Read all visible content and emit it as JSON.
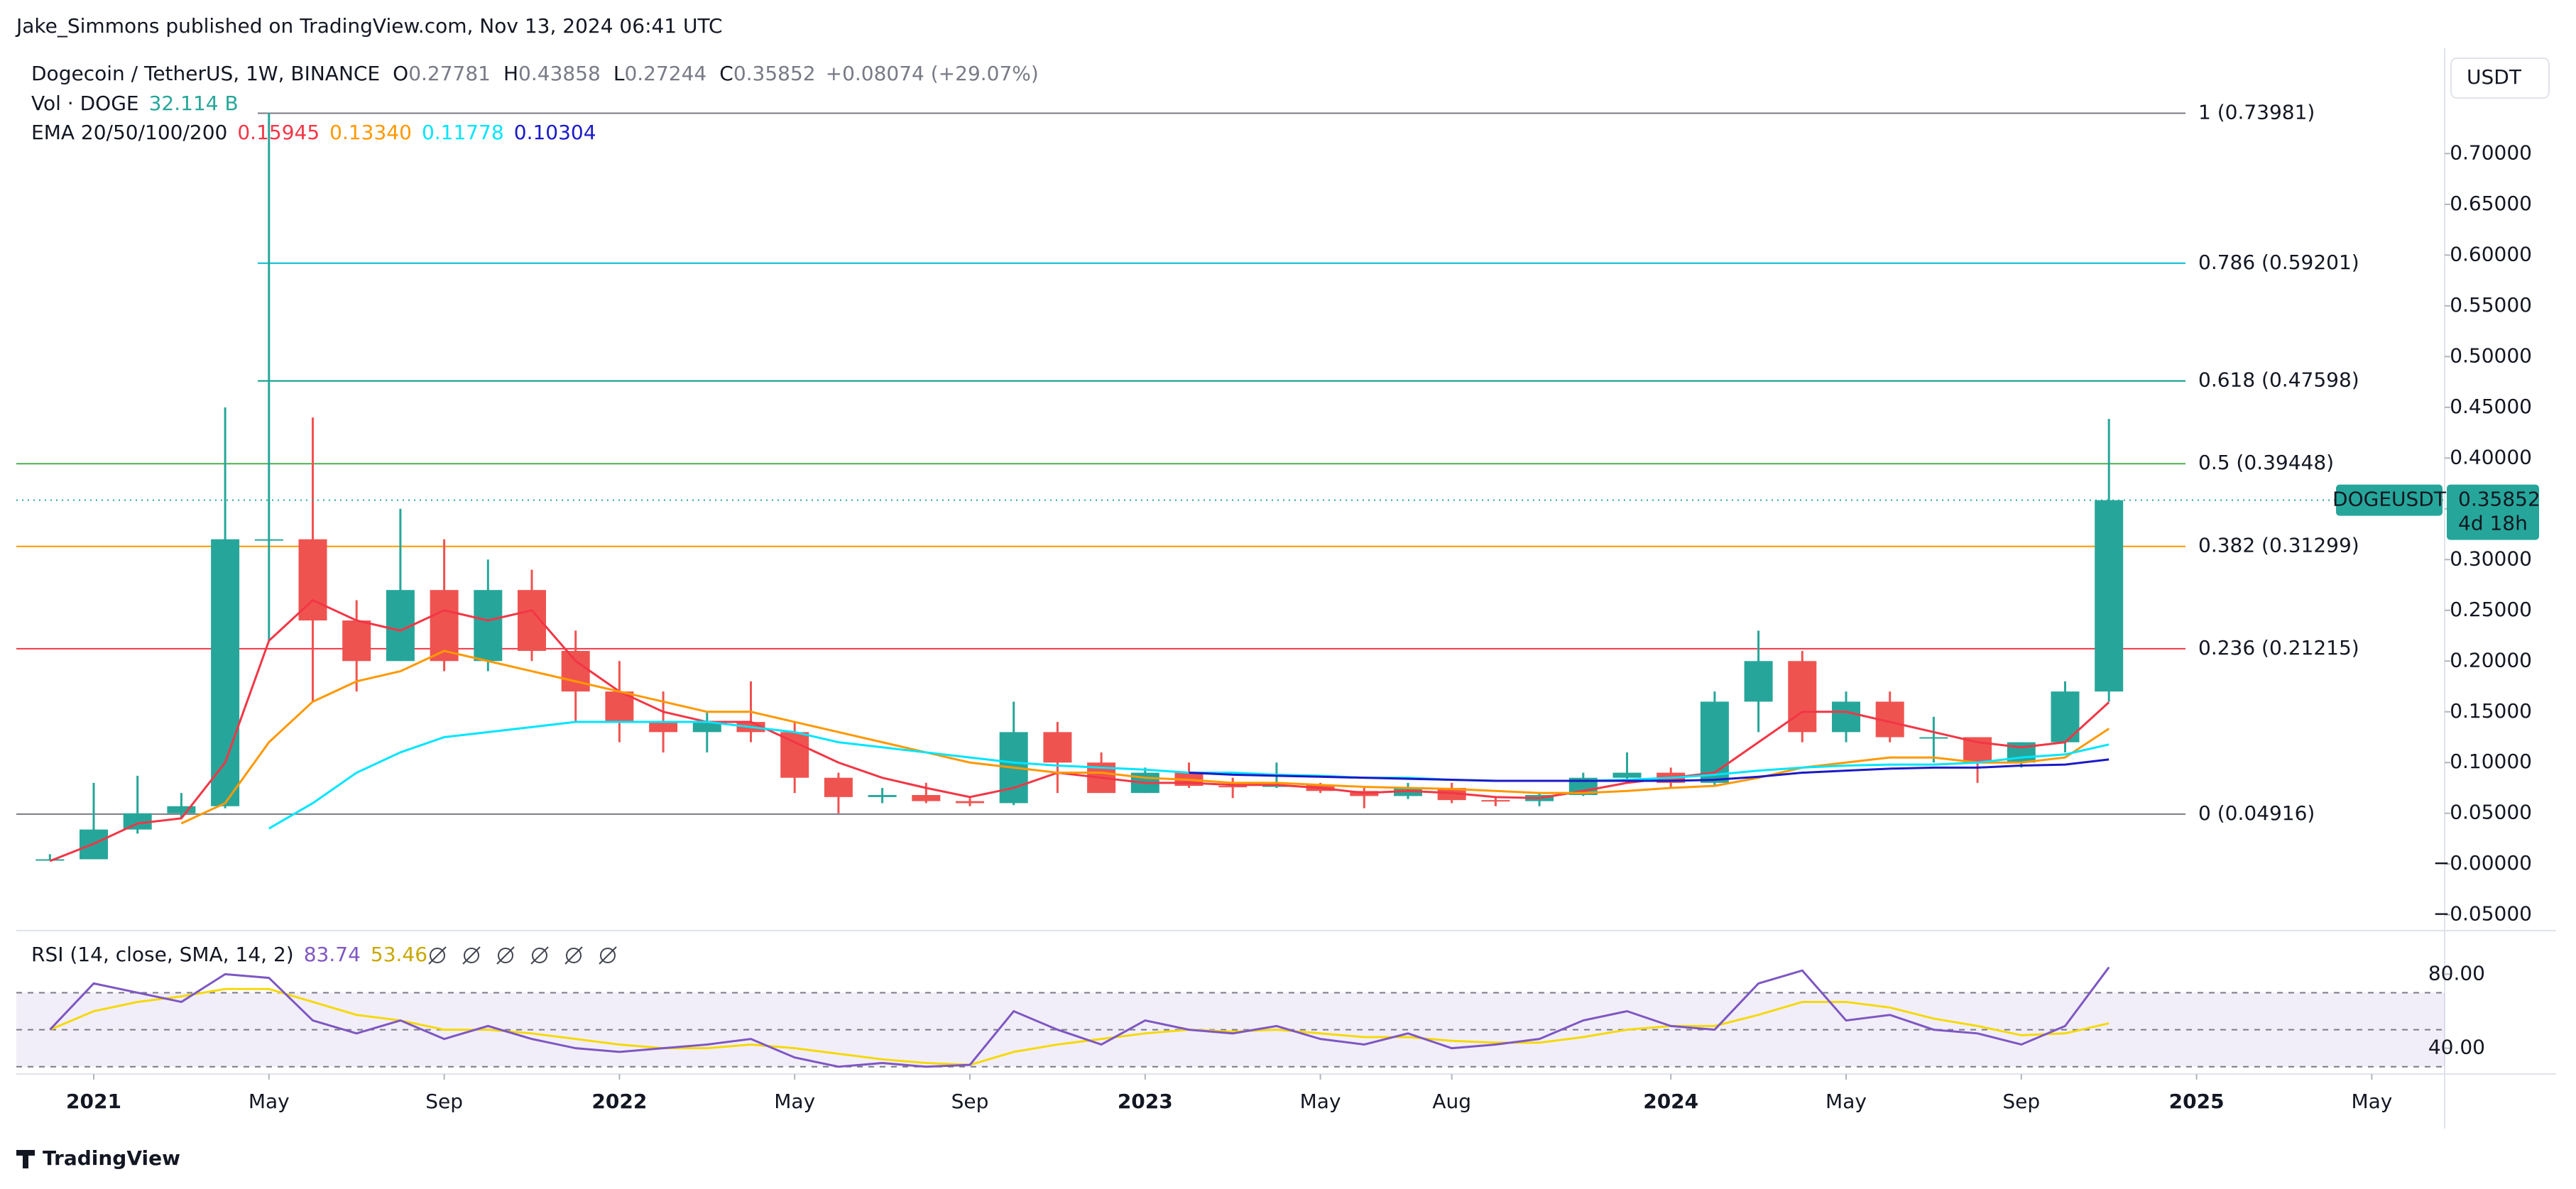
{
  "header": {
    "byline": "Jake_Simmons published on TradingView.com, Nov 13, 2024 06:41 UTC",
    "currency_button": "USDT"
  },
  "footer": {
    "brand": "TradingView"
  },
  "chart_data": {
    "type": "candlestick",
    "title": "Dogecoin / TetherUS, 1W, BINANCE",
    "ohlc": [
      {
        "key": "O",
        "value": "0.27781"
      },
      {
        "key": "H",
        "value": "0.43858"
      },
      {
        "key": "L",
        "value": "0.27244"
      },
      {
        "key": "C",
        "value": "0.35852"
      }
    ],
    "change": "+0.08074 (+29.07%)",
    "volume_label": "Vol · DOGE",
    "volume_value": "32.114 B",
    "ema_label": "EMA 20/50/100/200",
    "x": [
      "2020-12",
      "2021-01",
      "2021-02",
      "2021-03",
      "2021-04",
      "2021-05",
      "2021-06",
      "2021-07",
      "2021-08",
      "2021-09",
      "2021-10",
      "2021-11",
      "2021-12",
      "2022-01",
      "2022-02",
      "2022-03",
      "2022-04",
      "2022-05",
      "2022-06",
      "2022-07",
      "2022-08",
      "2022-09",
      "2022-10",
      "2022-11",
      "2022-12",
      "2023-01",
      "2023-02",
      "2023-03",
      "2023-04",
      "2023-05",
      "2023-06",
      "2023-07",
      "2023-08",
      "2023-09",
      "2023-10",
      "2023-11",
      "2023-12",
      "2024-01",
      "2024-02",
      "2024-03",
      "2024-04",
      "2024-05",
      "2024-06",
      "2024-07",
      "2024-08",
      "2024-09",
      "2024-10",
      "2024-11"
    ],
    "open": [
      0.0046,
      0.0047,
      0.034,
      0.05,
      0.057,
      0.32,
      0.32,
      0.24,
      0.2,
      0.27,
      0.2,
      0.27,
      0.21,
      0.17,
      0.14,
      0.13,
      0.14,
      0.13,
      0.085,
      0.066,
      0.068,
      0.062,
      0.06,
      0.13,
      0.1,
      0.07,
      0.09,
      0.077,
      0.076,
      0.078,
      0.072,
      0.067,
      0.075,
      0.063,
      0.062,
      0.068,
      0.085,
      0.09,
      0.08,
      0.16,
      0.2,
      0.13,
      0.16,
      0.125,
      0.125,
      0.1,
      0.12,
      0.17
    ],
    "high": [
      0.0097,
      0.08,
      0.087,
      0.07,
      0.45,
      0.74,
      0.44,
      0.26,
      0.35,
      0.32,
      0.3,
      0.29,
      0.23,
      0.2,
      0.17,
      0.15,
      0.18,
      0.14,
      0.09,
      0.075,
      0.08,
      0.065,
      0.16,
      0.14,
      0.11,
      0.095,
      0.1,
      0.085,
      0.1,
      0.08,
      0.075,
      0.08,
      0.08,
      0.066,
      0.07,
      0.09,
      0.11,
      0.095,
      0.17,
      0.23,
      0.21,
      0.17,
      0.17,
      0.145,
      0.125,
      0.12,
      0.18,
      0.43858
    ],
    "low": [
      0.0045,
      0.005,
      0.03,
      0.045,
      0.055,
      0.22,
      0.16,
      0.17,
      0.2,
      0.19,
      0.19,
      0.2,
      0.14,
      0.12,
      0.11,
      0.11,
      0.12,
      0.07,
      0.05,
      0.06,
      0.06,
      0.057,
      0.058,
      0.07,
      0.07,
      0.07,
      0.075,
      0.065,
      0.075,
      0.07,
      0.055,
      0.064,
      0.06,
      0.057,
      0.057,
      0.067,
      0.08,
      0.075,
      0.078,
      0.13,
      0.12,
      0.12,
      0.12,
      0.1,
      0.08,
      0.095,
      0.11,
      0.16
    ],
    "close": [
      0.0047,
      0.034,
      0.05,
      0.057,
      0.32,
      0.32,
      0.24,
      0.2,
      0.27,
      0.2,
      0.27,
      0.21,
      0.17,
      0.14,
      0.13,
      0.14,
      0.13,
      0.085,
      0.066,
      0.068,
      0.062,
      0.06,
      0.13,
      0.1,
      0.07,
      0.09,
      0.077,
      0.076,
      0.078,
      0.072,
      0.067,
      0.075,
      0.063,
      0.062,
      0.068,
      0.085,
      0.09,
      0.08,
      0.16,
      0.2,
      0.13,
      0.16,
      0.125,
      0.125,
      0.1,
      0.12,
      0.17,
      0.35852
    ],
    "up_color": "#26a69a",
    "down_color": "#ef5350",
    "series": [
      {
        "color": "#f23645",
        "legend_value": "0.15945",
        "values": [
          0.003,
          0.02,
          0.04,
          0.045,
          0.1,
          0.22,
          0.26,
          0.24,
          0.23,
          0.25,
          0.24,
          0.25,
          0.2,
          0.17,
          0.15,
          0.14,
          0.14,
          0.12,
          0.1,
          0.085,
          0.075,
          0.066,
          0.075,
          0.09,
          0.085,
          0.08,
          0.08,
          0.078,
          0.078,
          0.075,
          0.07,
          0.072,
          0.07,
          0.066,
          0.065,
          0.072,
          0.08,
          0.085,
          0.09,
          0.12,
          0.15,
          0.15,
          0.14,
          0.13,
          0.12,
          0.115,
          0.12,
          0.15945
        ]
      },
      {
        "color": "#ff9800",
        "legend_value": "0.13340",
        "values": [
          null,
          null,
          null,
          0.04,
          0.06,
          0.12,
          0.16,
          0.18,
          0.19,
          0.21,
          0.2,
          0.19,
          0.18,
          0.17,
          0.16,
          0.15,
          0.15,
          0.14,
          0.13,
          0.12,
          0.11,
          0.1,
          0.095,
          0.09,
          0.09,
          0.085,
          0.083,
          0.08,
          0.08,
          0.078,
          0.076,
          0.075,
          0.074,
          0.072,
          0.07,
          0.07,
          0.072,
          0.075,
          0.077,
          0.085,
          0.095,
          0.1,
          0.105,
          0.105,
          0.1,
          0.1,
          0.105,
          0.1334
        ]
      },
      {
        "color": "#00e5ff",
        "legend_value": "0.11778",
        "values": [
          null,
          null,
          null,
          null,
          null,
          0.035,
          0.06,
          0.09,
          0.11,
          0.125,
          0.13,
          0.135,
          0.14,
          0.14,
          0.14,
          0.14,
          0.135,
          0.13,
          0.12,
          0.115,
          0.11,
          0.105,
          0.1,
          0.097,
          0.095,
          0.093,
          0.09,
          0.09,
          0.088,
          0.087,
          0.085,
          0.085,
          0.083,
          0.082,
          0.082,
          0.082,
          0.083,
          0.085,
          0.088,
          0.092,
          0.095,
          0.097,
          0.098,
          0.098,
          0.1,
          0.105,
          0.108,
          0.11778
        ]
      },
      {
        "color": "#1a1ac8",
        "legend_value": "0.10304",
        "values": [
          null,
          null,
          null,
          null,
          null,
          null,
          null,
          null,
          null,
          null,
          null,
          null,
          null,
          null,
          null,
          null,
          null,
          null,
          null,
          null,
          null,
          null,
          null,
          null,
          null,
          null,
          0.09,
          0.088,
          0.087,
          0.086,
          0.085,
          0.084,
          0.083,
          0.082,
          0.082,
          0.082,
          0.082,
          0.082,
          0.083,
          0.086,
          0.09,
          0.092,
          0.094,
          0.095,
          0.095,
          0.097,
          0.098,
          0.10304
        ]
      }
    ],
    "ylim": [
      -0.06,
      0.787
    ],
    "yticks": [
      {
        "value": 0.7,
        "label": "0.70000"
      },
      {
        "value": 0.65,
        "label": "0.65000"
      },
      {
        "value": 0.6,
        "label": "0.60000"
      },
      {
        "value": 0.55,
        "label": "0.55000"
      },
      {
        "value": 0.5,
        "label": "0.50000"
      },
      {
        "value": 0.45,
        "label": "0.45000"
      },
      {
        "value": 0.4,
        "label": "0.40000"
      },
      {
        "value": 0.35,
        "label": "0.35000"
      },
      {
        "value": 0.3,
        "label": "0.30000"
      },
      {
        "value": 0.25,
        "label": "0.25000"
      },
      {
        "value": 0.2,
        "label": "0.20000"
      },
      {
        "value": 0.15,
        "label": "0.15000"
      },
      {
        "value": 0.1,
        "label": "0.10000"
      },
      {
        "value": 0.05,
        "label": "0.05000"
      },
      {
        "value": 0,
        "label": "−0.00000"
      },
      {
        "value": -0.05,
        "label": "−0.05000"
      }
    ],
    "xticks": [
      {
        "value": "2021-01",
        "label": "2021"
      },
      {
        "value": "2021-05",
        "label": "May"
      },
      {
        "value": "2021-09",
        "label": "Sep"
      },
      {
        "value": "2022-01",
        "label": "2022"
      },
      {
        "value": "2022-05",
        "label": "May"
      },
      {
        "value": "2022-09",
        "label": "Sep"
      },
      {
        "value": "2023-01",
        "label": "2023"
      },
      {
        "value": "2023-05",
        "label": "May"
      },
      {
        "value": "2023-08",
        "label": "Aug"
      },
      {
        "value": "2024-01",
        "label": "2024"
      },
      {
        "value": "2024-05",
        "label": "May"
      },
      {
        "value": "2024-09",
        "label": "Sep"
      },
      {
        "value": "2025-01",
        "label": "2025"
      },
      {
        "value": "2025-05",
        "label": "May"
      }
    ],
    "fib_levels": [
      {
        "value": 0.73981,
        "label": "1 (0.73981)",
        "color": "#787b86"
      },
      {
        "value": 0.59201,
        "label": "0.786 (0.59201)",
        "color": "#00bcd4"
      },
      {
        "value": 0.47598,
        "label": "0.618 (0.47598)",
        "color": "#089981"
      },
      {
        "value": 0.39448,
        "label": "0.5 (0.39448)",
        "color": "#4caf50"
      },
      {
        "value": 0.31299,
        "label": "0.382 (0.31299)",
        "color": "#ff9800"
      },
      {
        "value": 0.21215,
        "label": "0.236 (0.21215)",
        "color": "#f23645"
      },
      {
        "value": 0.04916,
        "label": "0 (0.04916)",
        "color": "#787b86"
      }
    ],
    "price_tag": {
      "symbol": "DOGEUSDT",
      "value": 0.35852,
      "label": "0.35852",
      "countdown": "4d 18h",
      "color": "#26a69a"
    },
    "rsi": {
      "title": "RSI (14, close, SMA, 14, 2)",
      "value_label": "83.74",
      "sma_label": "53.46",
      "color": "#7e57c2",
      "sma_color": "#f5d90a",
      "values": [
        50,
        75,
        70,
        65,
        80,
        78,
        55,
        48,
        55,
        45,
        52,
        45,
        40,
        38,
        40,
        42,
        45,
        35,
        30,
        32,
        30,
        31,
        60,
        50,
        42,
        55,
        50,
        48,
        52,
        45,
        42,
        48,
        40,
        42,
        45,
        55,
        60,
        52,
        50,
        75,
        82,
        55,
        58,
        50,
        48,
        42,
        52,
        83.74
      ],
      "sma": [
        50,
        60,
        65,
        68,
        72,
        72,
        65,
        58,
        55,
        50,
        50,
        48,
        45,
        42,
        40,
        40,
        42,
        40,
        37,
        34,
        32,
        31,
        38,
        42,
        45,
        48,
        50,
        49,
        50,
        48,
        46,
        46,
        44,
        43,
        43,
        46,
        50,
        52,
        52,
        58,
        65,
        65,
        62,
        56,
        52,
        47,
        48,
        53.46
      ],
      "ylim": [
        27.6,
        102
      ],
      "yticks": [
        {
          "value": 80,
          "label": "80.00"
        },
        {
          "value": 40,
          "label": "40.00"
        }
      ],
      "band": [
        30,
        70
      ],
      "midline": 50
    }
  }
}
